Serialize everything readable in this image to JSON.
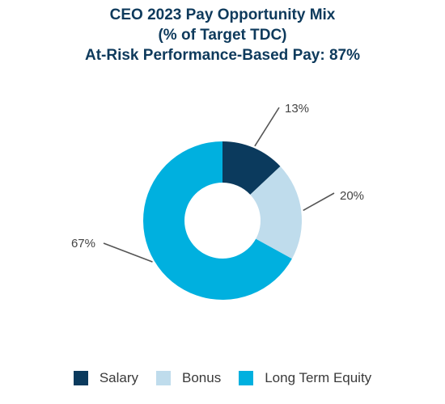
{
  "chart_data": {
    "type": "pie",
    "donut": true,
    "title_lines": [
      "CEO 2023 Pay Opportunity Mix",
      "(% of Target TDC)",
      "At-Risk Performance-Based Pay: 87%"
    ],
    "unit": "%",
    "categories": [
      "Salary",
      "Bonus",
      "Long Term Equity"
    ],
    "values": [
      13,
      20,
      67
    ],
    "data_labels": [
      "13%",
      "20%",
      "67%"
    ],
    "colors": [
      "#0b3a5d",
      "#bfdcec",
      "#00b0df"
    ],
    "legend_position": "bottom"
  }
}
